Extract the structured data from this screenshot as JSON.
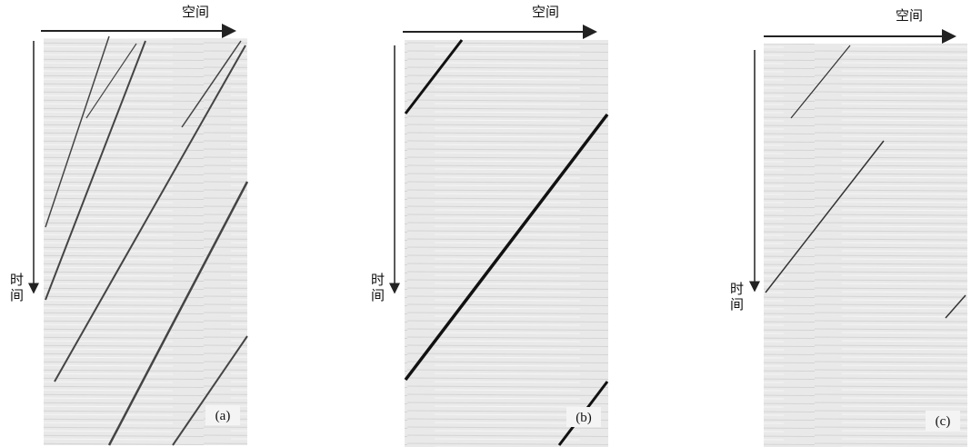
{
  "panels": [
    {
      "label": "(a)",
      "x_axis": "空间",
      "y_axis": "时间"
    },
    {
      "label": "(b)",
      "x_axis": "空间",
      "y_axis": "时间"
    },
    {
      "label": "(c)",
      "x_axis": "空间",
      "y_axis": "时间"
    }
  ]
}
